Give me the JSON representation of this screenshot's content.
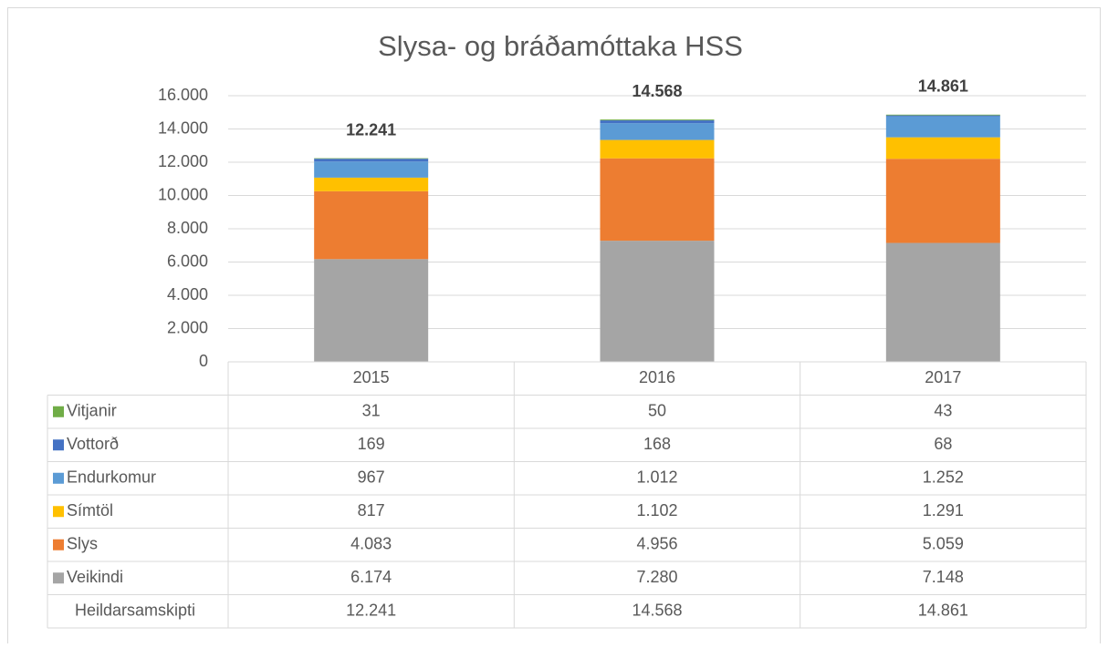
{
  "chart_data": {
    "type": "bar",
    "stacked": true,
    "title": "Slysa- og bráðamóttaka HSS",
    "categories": [
      "2015",
      "2016",
      "2017"
    ],
    "series": [
      {
        "name": "Veikindi",
        "color": "#a5a5a5",
        "values": [
          6174,
          7280,
          7148
        ],
        "value_labels": [
          "6.174",
          "7.280",
          "7.148"
        ]
      },
      {
        "name": "Slys",
        "color": "#ed7d31",
        "values": [
          4083,
          4956,
          5059
        ],
        "value_labels": [
          "4.083",
          "4.956",
          "5.059"
        ]
      },
      {
        "name": "Símtöl",
        "color": "#ffc000",
        "values": [
          817,
          1102,
          1291
        ],
        "value_labels": [
          "817",
          "1.102",
          "1.291"
        ]
      },
      {
        "name": "Endurkomur",
        "color": "#5b9bd5",
        "values": [
          967,
          1012,
          1252
        ],
        "value_labels": [
          "967",
          "1.012",
          "1.252"
        ]
      },
      {
        "name": "Vottorð",
        "color": "#4472c4",
        "values": [
          169,
          168,
          68
        ],
        "value_labels": [
          "169",
          "168",
          "68"
        ]
      },
      {
        "name": "Vitjanir",
        "color": "#70ad47",
        "values": [
          31,
          50,
          43
        ],
        "value_labels": [
          "31",
          "50",
          "43"
        ]
      }
    ],
    "totals": {
      "name": "Heildarsamskipti",
      "values": [
        12241,
        14568,
        14861
      ],
      "value_labels": [
        "12.241",
        "14.568",
        "14.861"
      ]
    },
    "ylim": [
      0,
      16000
    ],
    "yticks": [
      0,
      {
        "value": 2000,
        "label": "2.000"
      },
      {
        "value": 4000,
        "label": "4.000"
      },
      {
        "value": 6000,
        "label": "6.000"
      },
      {
        "value": 8000,
        "label": "8.000"
      },
      {
        "value": 10000,
        "label": "10.000"
      },
      {
        "value": 12000,
        "label": "12.000"
      },
      {
        "value": 14000,
        "label": "14.000"
      },
      {
        "value": 16000,
        "label": "16.000"
      }
    ],
    "grid": true
  }
}
